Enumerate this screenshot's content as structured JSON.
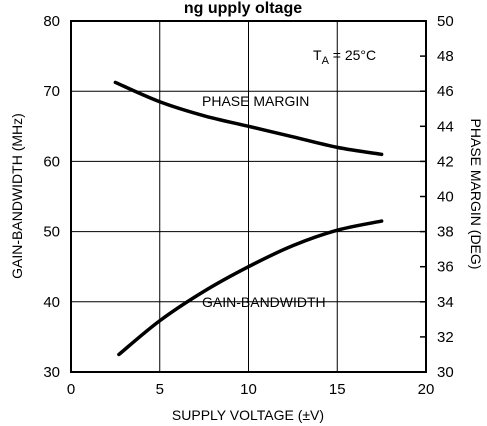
{
  "chart_data": {
    "type": "line",
    "title": "Gain-Bandwidth and Phase Margin vs Supply Voltage",
    "title_visible": "ng      upply  oltage",
    "xlabel": "SUPPLY VOLTAGE (±V)",
    "ylabel_left": "GAIN-BANDWIDTH (MHz)",
    "ylabel_right": "PHASE MARGIN (DEG)",
    "xlim": [
      0,
      20
    ],
    "ylim_left": [
      30,
      80
    ],
    "ylim_right": [
      30,
      50
    ],
    "x_ticks": [
      "0",
      "5",
      "10",
      "15",
      "20"
    ],
    "y_left_ticks": [
      "30",
      "40",
      "50",
      "60",
      "70",
      "80"
    ],
    "y_right_ticks": [
      "30",
      "32",
      "34",
      "36",
      "38",
      "40",
      "42",
      "44",
      "46",
      "48",
      "50"
    ],
    "grid": true,
    "annotation": {
      "prefix": "T",
      "subscript": "A",
      "suffix": " = 25°C"
    },
    "series": [
      {
        "name": "PHASE MARGIN",
        "axis": "right",
        "x": [
          2.5,
          5,
          7.5,
          10,
          12.5,
          15,
          17.5
        ],
        "y": [
          46.5,
          45.4,
          44.6,
          44.0,
          43.4,
          42.8,
          42.4
        ]
      },
      {
        "name": "GAIN-BANDWIDTH",
        "axis": "left",
        "x": [
          2.7,
          5,
          7.5,
          10,
          12.5,
          15,
          17.5
        ],
        "y": [
          32.5,
          37.3,
          41.5,
          45.0,
          48.0,
          50.2,
          51.5
        ]
      }
    ]
  }
}
